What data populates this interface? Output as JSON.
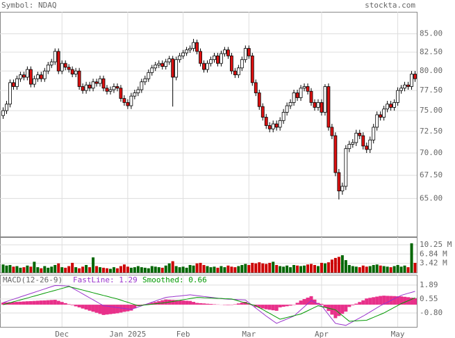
{
  "chart_data": [
    {
      "type": "candlestick",
      "title": "Symbol: NDAQ",
      "source": "stockta.com",
      "log_scale": true,
      "grid": true,
      "up_color": "#ffffff",
      "down_color": "#dd1111",
      "categories": [
        null,
        null,
        null,
        null,
        null,
        null,
        null,
        null,
        null,
        null,
        null,
        null,
        null,
        null,
        null,
        null,
        null,
        "Dec",
        null,
        null,
        null,
        null,
        null,
        null,
        null,
        null,
        null,
        null,
        null,
        null,
        null,
        null,
        null,
        null,
        null,
        null,
        "Jan 2025",
        null,
        null,
        null,
        null,
        null,
        null,
        null,
        null,
        null,
        null,
        null,
        null,
        null,
        null,
        null,
        "Feb",
        null,
        null,
        null,
        null,
        null,
        null,
        null,
        null,
        null,
        null,
        null,
        null,
        null,
        null,
        null,
        null,
        null,
        null,
        "Mar",
        null,
        null,
        null,
        null,
        null,
        null,
        null,
        null,
        null,
        null,
        null,
        null,
        null,
        null,
        null,
        null,
        null,
        null,
        null,
        null,
        "Apr",
        null,
        null,
        null,
        null,
        null,
        null,
        null,
        null,
        null,
        null,
        null,
        null,
        null,
        null,
        null,
        null,
        null,
        null,
        null,
        null,
        null,
        "May",
        null,
        null,
        null,
        null,
        null
      ],
      "open": [
        74.4,
        75.0,
        75.8,
        78.5,
        78.0,
        79.0,
        79.5,
        79.2,
        80.2,
        78.3,
        79.0,
        79.5,
        79.0,
        80.0,
        80.8,
        81.2,
        82.6,
        80.0,
        81.0,
        80.5,
        80.2,
        79.6,
        80.0,
        78.0,
        77.5,
        78.2,
        77.8,
        78.6,
        78.4,
        79.0,
        77.8,
        77.4,
        77.6,
        78.0,
        77.8,
        76.5,
        76.0,
        75.6,
        76.8,
        77.2,
        77.6,
        78.6,
        79.0,
        79.8,
        80.4,
        80.8,
        81.0,
        80.6,
        81.2,
        81.6,
        79.2,
        81.5,
        82.0,
        82.4,
        82.8,
        83.0,
        83.8,
        82.6,
        81.0,
        80.2,
        81.0,
        81.5,
        82.0,
        81.0,
        82.3,
        82.8,
        82.0,
        80.0,
        79.5,
        80.4,
        81.5,
        83.0,
        82.0,
        78.5,
        77.2,
        75.5,
        74.2,
        73.2,
        72.8,
        73.4,
        73.0,
        73.8,
        74.8,
        75.6,
        76.0,
        77.2,
        76.6,
        77.8,
        78.0,
        77.4,
        76.0,
        75.4,
        76.0,
        74.8,
        78.0,
        73.0,
        72.0,
        67.8,
        65.8,
        66.3,
        70.5,
        71.0,
        71.2,
        72.3,
        72.0,
        70.8,
        70.4,
        71.5,
        73.0,
        74.5,
        74.2,
        75.2,
        75.8,
        75.4,
        76.0,
        77.5,
        77.8,
        78.2,
        78.0,
        79.6
      ],
      "high": [
        75.4,
        76.2,
        78.9,
        78.9,
        79.4,
        79.9,
        79.9,
        80.6,
        80.6,
        79.4,
        79.9,
        79.9,
        80.4,
        81.2,
        81.6,
        83.0,
        83.0,
        81.4,
        81.4,
        80.9,
        80.6,
        80.4,
        80.4,
        78.4,
        78.6,
        78.6,
        79.0,
        79.0,
        79.4,
        79.4,
        78.2,
        78.0,
        78.4,
        78.4,
        78.2,
        76.9,
        76.4,
        77.2,
        77.6,
        78.0,
        79.0,
        79.4,
        80.2,
        80.8,
        81.2,
        81.4,
        81.4,
        81.6,
        82.0,
        82.0,
        81.9,
        82.4,
        82.8,
        83.2,
        83.4,
        84.3,
        84.2,
        83.0,
        81.4,
        81.4,
        81.9,
        82.4,
        82.4,
        82.7,
        83.2,
        83.2,
        82.4,
        80.4,
        80.8,
        81.9,
        83.4,
        83.4,
        82.4,
        78.9,
        77.6,
        75.9,
        74.6,
        73.6,
        73.8,
        73.8,
        74.2,
        75.2,
        76.0,
        76.4,
        77.6,
        77.6,
        78.2,
        78.4,
        78.4,
        77.8,
        76.4,
        76.4,
        76.4,
        78.3,
        78.4,
        73.4,
        72.4,
        68.2,
        66.7,
        70.9,
        71.4,
        71.6,
        72.7,
        72.7,
        72.4,
        71.2,
        71.9,
        73.4,
        74.9,
        74.9,
        75.6,
        76.2,
        76.2,
        76.4,
        77.9,
        78.2,
        78.6,
        78.6,
        80.0,
        80.0
      ],
      "low": [
        74.0,
        74.6,
        75.4,
        77.6,
        77.6,
        78.6,
        78.8,
        78.8,
        77.9,
        77.9,
        78.6,
        78.6,
        78.6,
        79.6,
        80.4,
        80.8,
        79.6,
        79.6,
        80.1,
        79.8,
        79.2,
        79.2,
        77.6,
        77.1,
        77.1,
        77.4,
        77.4,
        78.0,
        78.0,
        77.4,
        77.0,
        77.0,
        77.2,
        77.4,
        76.1,
        75.6,
        75.2,
        75.2,
        76.4,
        76.8,
        77.2,
        78.2,
        78.6,
        79.4,
        80.0,
        80.4,
        80.2,
        80.2,
        80.8,
        75.5,
        78.8,
        81.1,
        81.6,
        82.0,
        82.4,
        82.6,
        82.2,
        80.6,
        79.8,
        79.8,
        80.6,
        81.1,
        80.6,
        80.6,
        81.9,
        81.6,
        79.6,
        79.1,
        79.1,
        80.0,
        81.1,
        81.6,
        78.1,
        76.8,
        75.1,
        73.8,
        72.8,
        72.4,
        72.4,
        72.6,
        72.6,
        73.4,
        74.4,
        75.2,
        75.6,
        76.2,
        76.2,
        77.4,
        77.0,
        75.6,
        75.0,
        75.0,
        74.4,
        74.4,
        72.6,
        71.6,
        67.4,
        64.9,
        65.4,
        65.9,
        70.1,
        70.6,
        70.8,
        71.6,
        70.4,
        70.0,
        70.0,
        71.1,
        72.6,
        73.8,
        73.8,
        74.8,
        75.0,
        75.0,
        75.6,
        77.1,
        77.4,
        77.6,
        77.6,
        78.6
      ],
      "close": [
        75.0,
        75.8,
        78.5,
        78.0,
        79.0,
        79.5,
        79.2,
        80.2,
        78.3,
        79.0,
        79.5,
        79.0,
        80.0,
        80.8,
        81.2,
        82.6,
        80.0,
        81.0,
        80.5,
        80.2,
        79.6,
        80.0,
        78.0,
        77.5,
        78.2,
        77.8,
        78.6,
        78.4,
        79.0,
        77.8,
        77.4,
        77.6,
        78.0,
        77.8,
        76.5,
        76.0,
        75.6,
        76.8,
        77.2,
        77.6,
        78.6,
        79.0,
        79.8,
        80.4,
        80.8,
        81.0,
        80.6,
        81.2,
        81.6,
        79.2,
        81.5,
        82.0,
        82.4,
        82.8,
        83.0,
        83.8,
        82.6,
        81.0,
        80.2,
        81.0,
        81.5,
        82.0,
        81.0,
        82.3,
        82.8,
        82.0,
        80.0,
        79.5,
        80.4,
        81.5,
        83.0,
        82.0,
        78.5,
        77.2,
        75.5,
        74.2,
        73.2,
        72.8,
        73.4,
        73.0,
        73.8,
        74.8,
        75.6,
        76.0,
        77.2,
        76.6,
        77.8,
        78.0,
        77.4,
        76.0,
        75.4,
        76.0,
        74.8,
        78.0,
        73.0,
        72.0,
        67.8,
        65.8,
        66.3,
        70.5,
        71.0,
        71.2,
        72.3,
        72.0,
        70.8,
        70.4,
        71.5,
        73.0,
        74.5,
        74.2,
        75.2,
        75.8,
        75.4,
        76.0,
        77.5,
        77.8,
        78.2,
        78.0,
        79.6,
        79.0
      ],
      "ylim": [
        61.1,
        88.1
      ],
      "yticks": [
        {
          "value": 85,
          "label": "85.00"
        },
        {
          "value": 82.5,
          "label": "82.50"
        },
        {
          "value": 80,
          "label": "80.00"
        },
        {
          "value": 77.5,
          "label": "77.50"
        },
        {
          "value": 75,
          "label": "75.00"
        },
        {
          "value": 72.5,
          "label": "72.50"
        },
        {
          "value": 70,
          "label": "70.00"
        },
        {
          "value": 67.5,
          "label": "67.50"
        },
        {
          "value": 65,
          "label": "65.00"
        }
      ]
    },
    {
      "type": "volume",
      "up_color": "#006600",
      "down_color": "#cc0000",
      "values": [
        3.0,
        2.6,
        2.8,
        2.2,
        2.4,
        1.8,
        2.0,
        2.6,
        2.2,
        4.0,
        2.0,
        1.6,
        2.4,
        1.8,
        2.2,
        2.8,
        3.4,
        2.0,
        1.8,
        2.4,
        3.6,
        2.0,
        1.6,
        2.2,
        2.8,
        2.0,
        5.6,
        2.4,
        2.0,
        1.8,
        1.6,
        1.4,
        2.0,
        1.6,
        2.4,
        3.0,
        2.2,
        1.8,
        2.0,
        2.4,
        2.0,
        1.8,
        1.6,
        2.4,
        2.2,
        2.0,
        1.8,
        2.6,
        3.4,
        4.2,
        2.4,
        2.0,
        2.2,
        1.8,
        2.8,
        2.6,
        3.4,
        3.6,
        2.8,
        2.4,
        2.0,
        2.2,
        1.8,
        2.4,
        2.0,
        2.6,
        2.2,
        2.0,
        2.4,
        2.8,
        3.2,
        2.8,
        3.6,
        3.4,
        3.8,
        3.4,
        3.2,
        3.6,
        4.0,
        2.8,
        2.4,
        2.2,
        2.6,
        2.0,
        2.8,
        2.6,
        2.4,
        2.6,
        3.0,
        3.2,
        2.8,
        2.4,
        3.6,
        3.4,
        3.8,
        4.8,
        5.4,
        5.8,
        6.4,
        4.6,
        2.8,
        2.4,
        2.2,
        2.0,
        2.6,
        2.2,
        2.4,
        2.8,
        3.0,
        2.6,
        2.4,
        2.2,
        2.0,
        2.4,
        2.8,
        2.2,
        2.6,
        2.0,
        10.8,
        3.6
      ],
      "ylim": [
        0,
        13.05
      ],
      "yticks": [
        {
          "value": 10.25,
          "label": "10.25 M"
        },
        {
          "value": 6.84,
          "label": "6.84 M"
        },
        {
          "value": 3.42,
          "label": "3.42 M"
        }
      ]
    },
    {
      "type": "macd",
      "title": "MACD(12-26-9)",
      "series": [
        {
          "name": "FastLine: 1.29",
          "color": "#9933cc",
          "values": [
            0.2,
            0.31,
            0.42,
            0.53,
            0.64,
            0.75,
            0.86,
            0.97,
            1.08,
            1.19,
            1.3,
            1.41,
            1.52,
            1.63,
            1.74,
            1.85,
            1.84,
            1.83,
            1.81,
            1.8,
            1.61,
            1.42,
            1.23,
            1.04,
            0.85,
            0.66,
            0.47,
            0.28,
            0.09,
            -0.1,
            -0.14,
            -0.19,
            -0.23,
            -0.28,
            -0.32,
            -0.36,
            -0.41,
            -0.45,
            -0.34,
            -0.22,
            -0.11,
            0.01,
            0.12,
            0.24,
            0.35,
            0.47,
            0.59,
            0.7,
            0.74,
            0.77,
            0.81,
            0.84,
            0.88,
            0.91,
            0.95,
            0.91,
            0.87,
            0.83,
            0.79,
            0.75,
            0.71,
            0.67,
            0.63,
            0.59,
            0.55,
            0.53,
            0.52,
            0.5,
            0.48,
            0.47,
            0.45,
            0.19,
            -0.07,
            -0.33,
            -0.58,
            -0.84,
            -1.1,
            -1.33,
            -1.57,
            -1.8,
            -1.66,
            -1.52,
            -1.38,
            -1.24,
            -1.1,
            -0.8,
            -0.5,
            -0.2,
            0.1,
            0.4,
            0.23,
            0.07,
            -0.1,
            -0.53,
            -0.95,
            -1.38,
            -1.8,
            -1.87,
            -1.93,
            -2.0,
            -1.82,
            -1.64,
            -1.46,
            -1.28,
            -1.1,
            -0.9,
            -0.7,
            -0.5,
            -0.3,
            -0.1,
            0.07,
            0.23,
            0.4,
            0.57,
            0.73,
            0.9,
            1.0,
            1.1,
            1.19,
            1.29
          ]
        },
        {
          "name": "Smoothed: 0.66",
          "color": "#009900",
          "values": [
            0.0,
            0.09,
            0.18,
            0.28,
            0.37,
            0.46,
            0.55,
            0.64,
            0.74,
            0.83,
            0.92,
            1.01,
            1.11,
            1.2,
            1.29,
            1.38,
            1.47,
            1.57,
            1.66,
            1.75,
            1.66,
            1.58,
            1.49,
            1.41,
            1.32,
            1.24,
            1.15,
            1.06,
            0.98,
            0.89,
            0.81,
            0.72,
            0.64,
            0.55,
            0.44,
            0.33,
            0.23,
            0.12,
            0.01,
            -0.1,
            -0.06,
            -0.03,
            0.01,
            0.05,
            0.09,
            0.13,
            0.16,
            0.2,
            0.26,
            0.31,
            0.37,
            0.42,
            0.48,
            0.53,
            0.59,
            0.64,
            0.7,
            0.69,
            0.67,
            0.66,
            0.64,
            0.63,
            0.61,
            0.6,
            0.58,
            0.57,
            0.55,
            0.46,
            0.36,
            0.27,
            0.18,
            0.09,
            -0.01,
            -0.1,
            -0.29,
            -0.47,
            -0.66,
            -0.84,
            -1.03,
            -1.21,
            -1.4,
            -1.32,
            -1.23,
            -1.15,
            -1.07,
            -0.98,
            -0.9,
            -0.74,
            -0.58,
            -0.42,
            -0.26,
            -0.1,
            -0.18,
            -0.26,
            -0.34,
            -0.42,
            -0.5,
            -0.78,
            -1.05,
            -1.33,
            -1.6,
            -1.58,
            -1.56,
            -1.54,
            -1.52,
            -1.5,
            -1.36,
            -1.22,
            -1.08,
            -0.94,
            -0.8,
            -0.62,
            -0.44,
            -0.26,
            -0.08,
            0.1,
            0.24,
            0.38,
            0.52,
            0.66
          ]
        }
      ],
      "histogram": {
        "color": "#e8308a",
        "values": [
          0.2,
          0.22,
          0.24,
          0.25,
          0.27,
          0.29,
          0.31,
          0.33,
          0.34,
          0.36,
          0.38,
          0.4,
          0.41,
          0.43,
          0.45,
          0.47,
          0.37,
          0.26,
          0.15,
          0.05,
          -0.05,
          -0.16,
          -0.26,
          -0.37,
          -0.47,
          -0.58,
          -0.68,
          -0.78,
          -0.89,
          -0.99,
          -0.95,
          -0.91,
          -0.87,
          -0.83,
          -0.76,
          -0.69,
          -0.64,
          -0.57,
          -0.35,
          -0.12,
          -0.05,
          0.04,
          0.11,
          0.19,
          0.26,
          0.34,
          0.43,
          0.5,
          0.48,
          0.46,
          0.44,
          0.42,
          0.4,
          0.38,
          0.36,
          0.27,
          0.17,
          0.14,
          0.12,
          0.09,
          0.07,
          0.04,
          0.02,
          -0.01,
          -0.03,
          -0.04,
          -0.03,
          0.04,
          0.12,
          0.2,
          0.27,
          0.1,
          -0.06,
          -0.23,
          -0.29,
          -0.37,
          -0.44,
          -0.49,
          -0.54,
          -0.59,
          -0.26,
          -0.2,
          -0.15,
          -0.09,
          -0.03,
          0.18,
          0.4,
          0.54,
          0.68,
          0.82,
          0.49,
          0.17,
          0.08,
          -0.27,
          -0.61,
          -0.96,
          -1.3,
          -1.09,
          -0.88,
          -0.67,
          -0.22,
          -0.06,
          0.1,
          0.26,
          0.42,
          0.6,
          0.66,
          0.72,
          0.78,
          0.84,
          0.87,
          0.85,
          0.84,
          0.83,
          0.81,
          0.8,
          0.76,
          0.72,
          0.67,
          0.63
        ]
      },
      "ylim": [
        -2.14,
        2.89
      ],
      "yticks": [
        1.89,
        0.55,
        {
          "value": -0.8,
          "label": "-0.80"
        }
      ]
    }
  ]
}
